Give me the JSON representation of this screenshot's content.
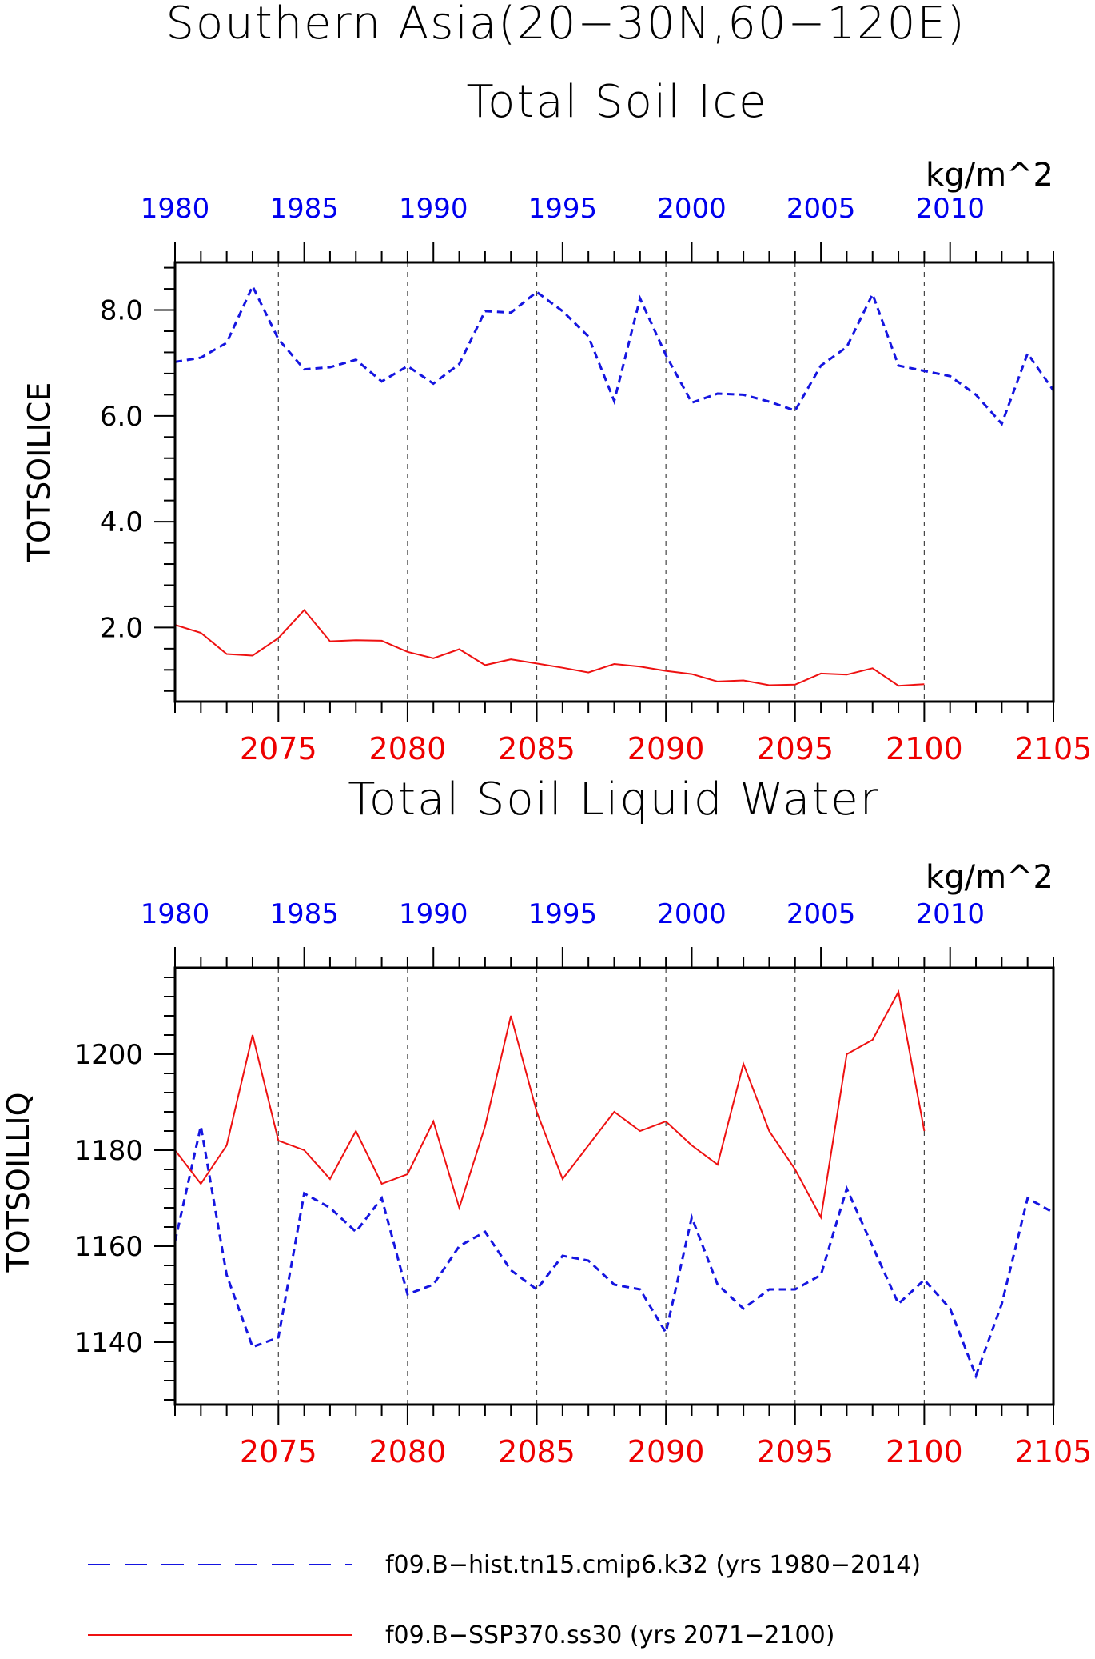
{
  "title": "Southern Asia(20−30N,60−120E)",
  "colors": {
    "hist": "#1515e0",
    "ssp": "#ee1111",
    "axis": "#000000",
    "grid": "#444444"
  },
  "legend": {
    "hist_label": "f09.B−hist.tn15.cmip6.k32 (yrs 1980−2014)",
    "ssp_label": "f09.B−SSP370.ss30 (yrs 2071−2100)"
  },
  "chart_data": [
    {
      "type": "line",
      "title": "Total Soil Ice",
      "units": "kg/m^2",
      "ylabel": "TOTSOILICE",
      "ylim": [
        0.6,
        8.9
      ],
      "yticks": [
        2.0,
        4.0,
        6.0,
        8.0
      ],
      "ytick_labels": [
        "2.0",
        "4.0",
        "6.0",
        "8.0"
      ],
      "top_axis": {
        "label_color": "blue",
        "ticks": [
          1980,
          1985,
          1990,
          1995,
          2000,
          2005,
          2010
        ],
        "range": [
          1980,
          2014
        ]
      },
      "bottom_axis": {
        "label_color": "red",
        "ticks": [
          2075,
          2080,
          2085,
          2090,
          2095,
          2100,
          2105
        ],
        "range": [
          2071,
          2105
        ]
      },
      "grid": "vertical dashed at bottom-axis ticks 2075-2100",
      "series": [
        {
          "name": "f09.B−hist.tn15.cmip6.k32 (yrs 1980−2014)",
          "style": "dashed",
          "color": "blue",
          "x": [
            1980,
            1981,
            1982,
            1983,
            1984,
            1985,
            1986,
            1987,
            1988,
            1989,
            1990,
            1991,
            1992,
            1993,
            1994,
            1995,
            1996,
            1997,
            1998,
            1999,
            2000,
            2001,
            2002,
            2003,
            2004,
            2005,
            2006,
            2007,
            2008,
            2009,
            2010,
            2011,
            2012,
            2013,
            2014
          ],
          "values": [
            7.02,
            7.1,
            7.38,
            8.45,
            7.45,
            6.88,
            6.92,
            7.06,
            6.65,
            6.94,
            6.61,
            6.98,
            7.98,
            7.95,
            8.34,
            7.98,
            7.5,
            6.28,
            8.22,
            7.15,
            6.25,
            6.42,
            6.4,
            6.27,
            6.1,
            6.95,
            7.3,
            8.3,
            6.95,
            6.85,
            6.75,
            6.4,
            5.85,
            7.18,
            6.48
          ]
        },
        {
          "name": "f09.B−SSP370.ss30 (yrs 2071−2100)",
          "style": "solid",
          "color": "red",
          "x": [
            2071,
            2072,
            2073,
            2074,
            2075,
            2076,
            2077,
            2078,
            2079,
            2080,
            2081,
            2082,
            2083,
            2084,
            2085,
            2086,
            2087,
            2088,
            2089,
            2090,
            2091,
            2092,
            2093,
            2094,
            2095,
            2096,
            2097,
            2098,
            2099,
            2100
          ],
          "values": [
            2.05,
            1.9,
            1.5,
            1.47,
            1.8,
            2.33,
            1.74,
            1.76,
            1.75,
            1.54,
            1.42,
            1.59,
            1.29,
            1.4,
            1.32,
            1.24,
            1.15,
            1.31,
            1.26,
            1.18,
            1.12,
            0.98,
            1.0,
            0.91,
            0.92,
            1.13,
            1.11,
            1.23,
            0.9,
            0.93
          ]
        }
      ]
    },
    {
      "type": "line",
      "title": "Total Soil Liquid Water",
      "units": "kg/m^2",
      "ylabel": "TOTSOILLIQ",
      "ylim": [
        1127,
        1218
      ],
      "yticks": [
        1140,
        1160,
        1180,
        1200
      ],
      "ytick_labels": [
        "1140",
        "1160",
        "1180",
        "1200"
      ],
      "top_axis": {
        "label_color": "blue",
        "ticks": [
          1980,
          1985,
          1990,
          1995,
          2000,
          2005,
          2010
        ],
        "range": [
          1980,
          2014
        ]
      },
      "bottom_axis": {
        "label_color": "red",
        "ticks": [
          2075,
          2080,
          2085,
          2090,
          2095,
          2100,
          2105
        ],
        "range": [
          2071,
          2105
        ]
      },
      "grid": "vertical dashed at bottom-axis ticks 2075-2100",
      "series": [
        {
          "name": "f09.B−hist.tn15.cmip6.k32 (yrs 1980−2014)",
          "style": "dashed",
          "color": "blue",
          "x": [
            1980,
            1981,
            1982,
            1983,
            1984,
            1985,
            1986,
            1987,
            1988,
            1989,
            1990,
            1991,
            1992,
            1993,
            1994,
            1995,
            1996,
            1997,
            1998,
            1999,
            2000,
            2001,
            2002,
            2003,
            2004,
            2005,
            2006,
            2007,
            2008,
            2009,
            2010,
            2011,
            2012,
            2013,
            2014
          ],
          "values": [
            1161,
            1185,
            1154,
            1139,
            1141,
            1171,
            1168,
            1163,
            1170,
            1150,
            1152,
            1160,
            1163,
            1155,
            1151,
            1158,
            1157,
            1152,
            1151,
            1142,
            1166,
            1152,
            1147,
            1151,
            1151,
            1154,
            1172,
            1160,
            1148,
            1153,
            1147,
            1133,
            1148,
            1170,
            1167
          ]
        },
        {
          "name": "f09.B−SSP370.ss30 (yrs 2071−2100)",
          "style": "solid",
          "color": "red",
          "x": [
            2071,
            2072,
            2073,
            2074,
            2075,
            2076,
            2077,
            2078,
            2079,
            2080,
            2081,
            2082,
            2083,
            2084,
            2085,
            2086,
            2087,
            2088,
            2089,
            2090,
            2091,
            2092,
            2093,
            2094,
            2095,
            2096,
            2097,
            2098,
            2099,
            2100
          ],
          "values": [
            1180,
            1173,
            1181,
            1204,
            1182,
            1180,
            1174,
            1184,
            1173,
            1175,
            1186,
            1168,
            1185,
            1208,
            1188,
            1174,
            1181,
            1188,
            1184,
            1186,
            1181,
            1177,
            1198,
            1184,
            1176,
            1166,
            1200,
            1203,
            1213,
            1184
          ]
        }
      ]
    }
  ]
}
